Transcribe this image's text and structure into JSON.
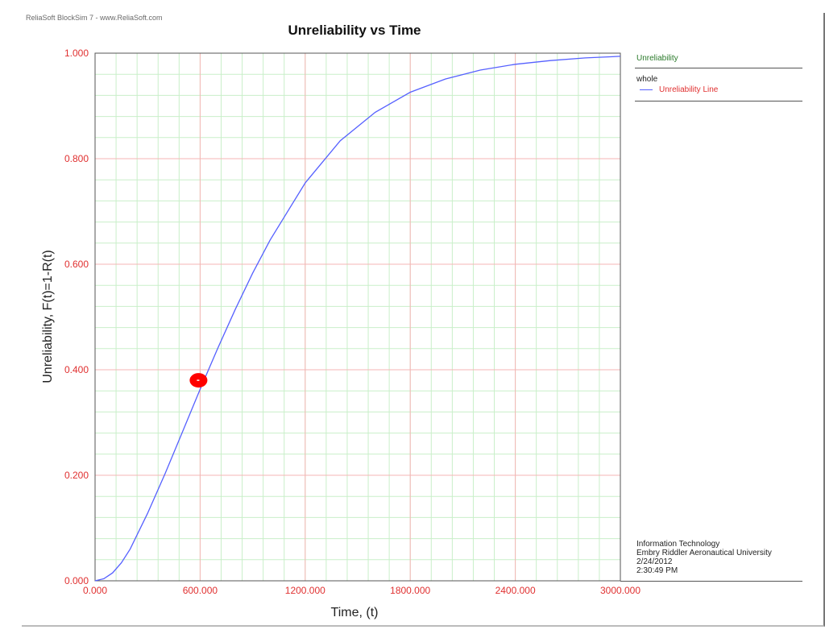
{
  "app_caption": "ReliaSoft BlockSim 7 - www.ReliaSoft.com",
  "chart_data": {
    "type": "line",
    "title": "Unreliability vs Time",
    "xlabel": "Time, (t)",
    "ylabel": "Unreliability, F(t)=1-R(t)",
    "xlim": [
      0,
      3000
    ],
    "ylim": [
      0,
      1
    ],
    "x_ticks": [
      "0.000",
      "600.000",
      "1200.000",
      "1800.000",
      "2400.000",
      "3000.000"
    ],
    "y_ticks": [
      "0.000",
      "0.200",
      "0.400",
      "0.600",
      "0.800",
      "1.000"
    ],
    "grid": true,
    "legend_position": "right",
    "series": [
      {
        "name": "Unreliability Line",
        "color": "#5560ff",
        "x": [
          0,
          50,
          100,
          150,
          200,
          300,
          400,
          500,
          600,
          700,
          800,
          900,
          1000,
          1200,
          1400,
          1600,
          1800,
          2000,
          2200,
          2400,
          2600,
          2800,
          3000
        ],
        "y": [
          0.0,
          0.004,
          0.015,
          0.034,
          0.06,
          0.128,
          0.203,
          0.283,
          0.363,
          0.44,
          0.514,
          0.583,
          0.646,
          0.754,
          0.834,
          0.888,
          0.926,
          0.951,
          0.968,
          0.979,
          0.986,
          0.991,
          0.994
        ]
      }
    ],
    "marker": {
      "x": 600,
      "y": 0.38,
      "color": "#ff0000"
    }
  },
  "legend": {
    "title": "Unreliability",
    "group": "whole",
    "entry": "Unreliability Line",
    "entry_color": "#5560ff"
  },
  "info": {
    "line1": "Information Technology",
    "line2": "Embry Riddler Aeronautical University",
    "line3": "2/24/2012",
    "line4": "2:30:49 PM"
  }
}
